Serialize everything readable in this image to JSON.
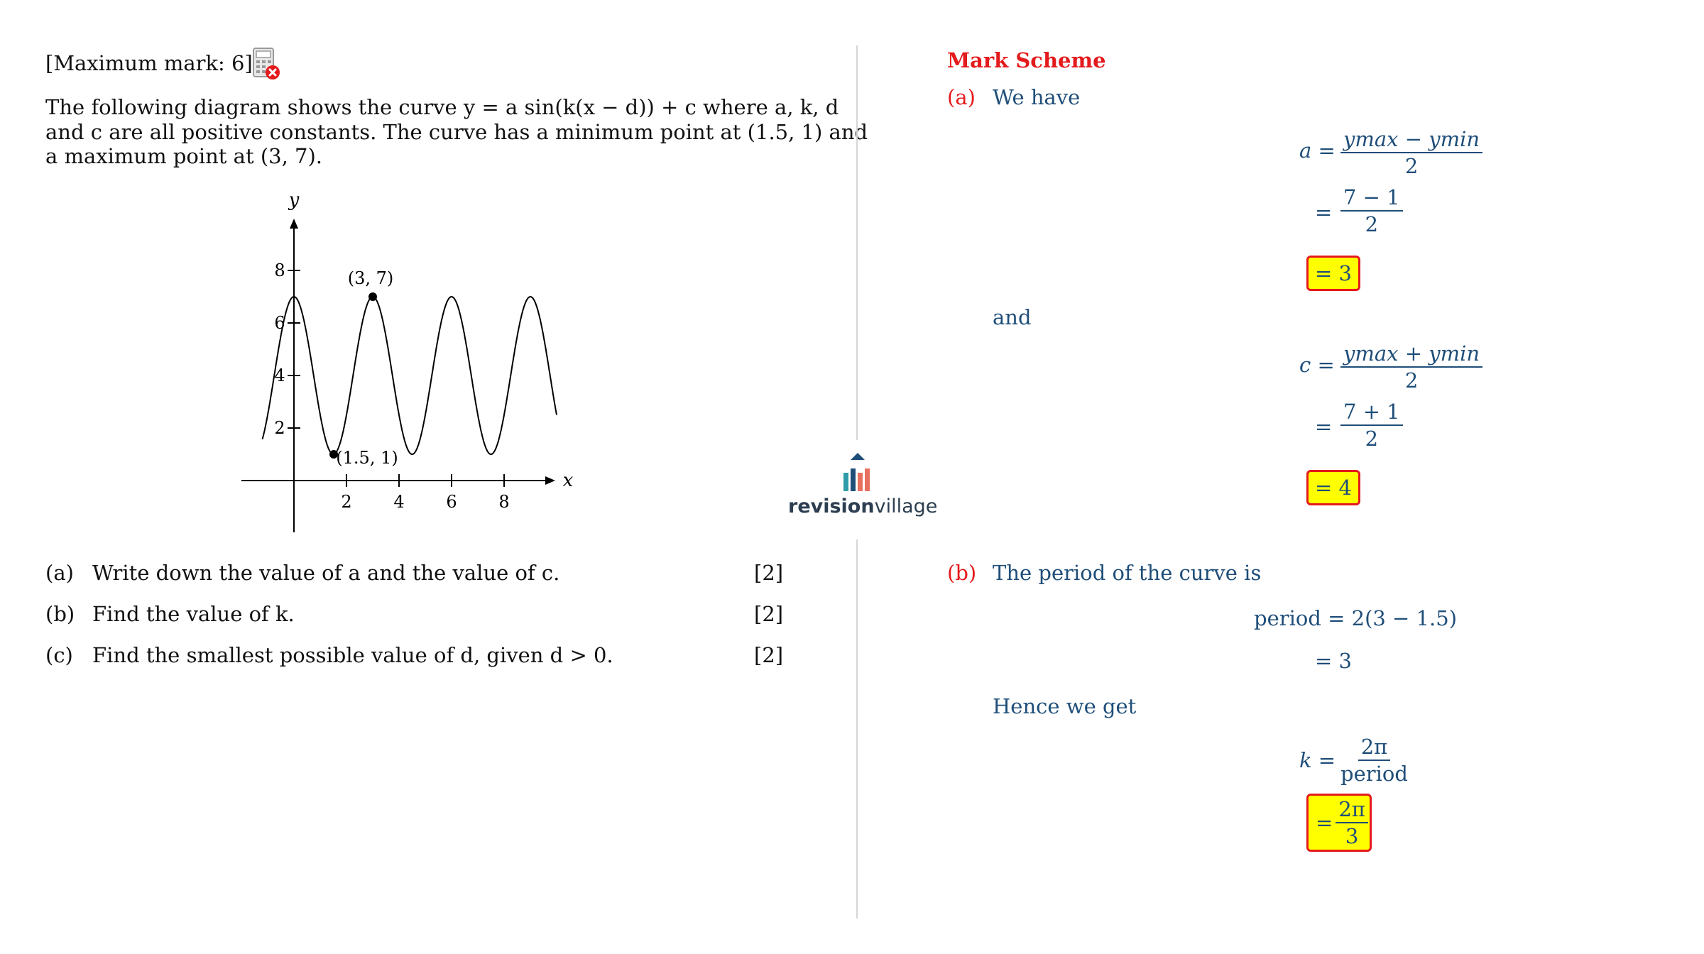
{
  "question": {
    "max_mark": "[Maximum mark: 6]",
    "calculator_icon": "calculator-not-allowed-icon",
    "intro_line1": "The following diagram shows the curve y = a sin(k(x − d)) + c where a, k, d",
    "intro_line2": "and c are all positive constants. The curve has a minimum point at (1.5, 1) and",
    "intro_line3": "a maximum point at (3, 7).",
    "parts": [
      {
        "label": "(a)",
        "text": "Write down the value of a and the value of c.",
        "marks": "[2]"
      },
      {
        "label": "(b)",
        "text": "Find the value of k.",
        "marks": "[2]"
      },
      {
        "label": "(c)",
        "text": "Find the smallest possible value of d, given d > 0.",
        "marks": "[2]"
      }
    ]
  },
  "graph": {
    "ylabel": "y",
    "xlabel": "x",
    "x_ticks": [
      "2",
      "4",
      "6",
      "8"
    ],
    "y_ticks": [
      "2",
      "4",
      "6",
      "8"
    ],
    "max_label": "(3, 7)",
    "min_label": "(1.5, 1)"
  },
  "logo": {
    "brand_bold": "revision",
    "brand_light": "village"
  },
  "mark_scheme": {
    "title": "Mark Scheme",
    "a_label": "(a)",
    "a_intro": "We have",
    "a_lhs": "a =",
    "a_num": "ymax − ymin",
    "a_den": "2",
    "a_eq": "=",
    "a_num2": "7 − 1",
    "a_den2": "2",
    "a_answer": "= 3",
    "and_text": "and",
    "c_lhs": "c =",
    "c_num": "ymax + ymin",
    "c_den": "2",
    "c_eq": "=",
    "c_num2": "7 + 1",
    "c_den2": "2",
    "c_answer": "= 4",
    "b_label": "(b)",
    "b_intro": "The period of the curve is",
    "period_line": "period = 2(3 − 1.5)",
    "period_result": "= 3",
    "hence": "Hence we get",
    "k_lhs": "k =",
    "k_num": "2π",
    "k_den": "period",
    "k_eq": "=",
    "k_ans_num": "2π",
    "k_ans_den": "3"
  },
  "colors": {
    "accent_red": "#e41a1c",
    "ms_blue": "#1f4e79",
    "highlight_yellow": "#ffff00"
  }
}
